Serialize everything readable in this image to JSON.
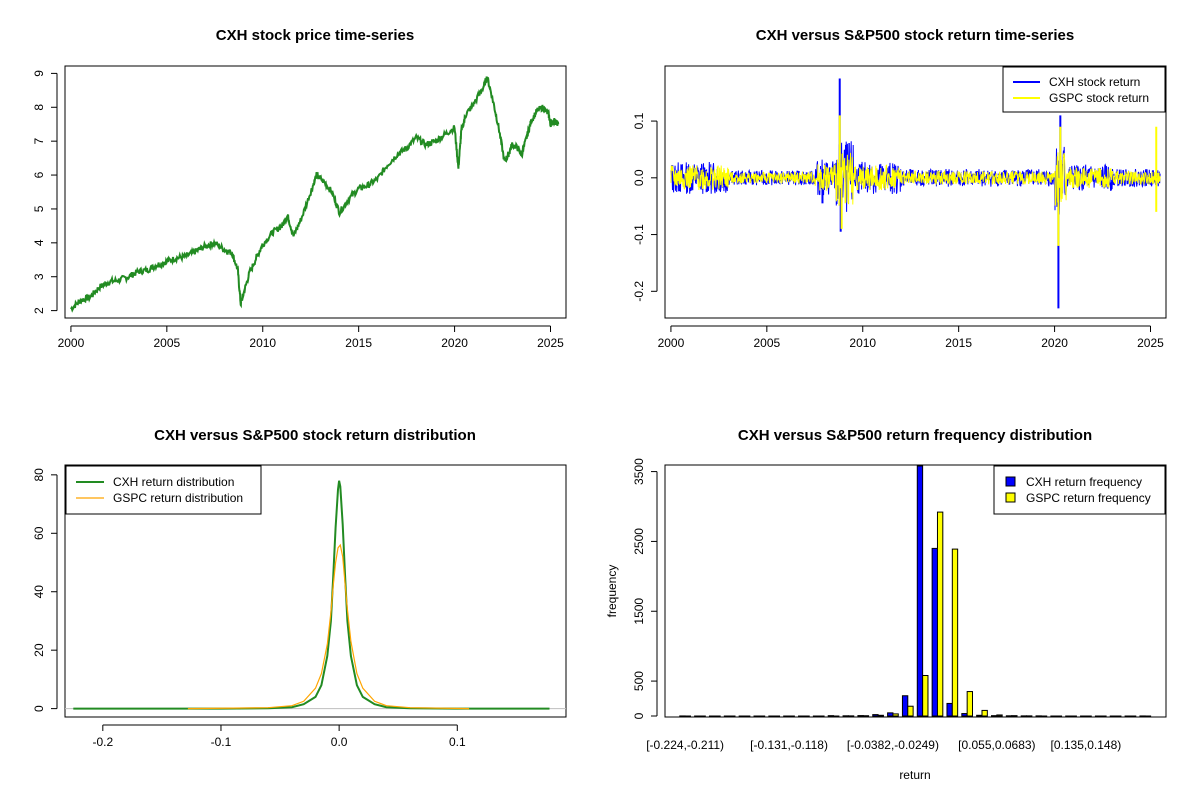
{
  "chart_data": [
    {
      "id": "price",
      "type": "line",
      "title": "CXH stock price time-series",
      "xlabel": "",
      "ylabel": "",
      "xlim": [
        1999.9,
        2025.6
      ],
      "ylim": [
        1.9,
        9.1
      ],
      "xticks": [
        2000,
        2005,
        2010,
        2015,
        2020,
        2025
      ],
      "yticks": [
        2,
        3,
        4,
        5,
        6,
        7,
        8,
        9
      ],
      "grid": false,
      "colors": {
        "series": "#228B22"
      },
      "series": [
        {
          "x": [
            2000.0,
            2000.5,
            2001.0,
            2001.5,
            2002.0,
            2002.5,
            2003.0,
            2003.5,
            2004.0,
            2004.5,
            2005.0,
            2005.5,
            2006.0,
            2006.5,
            2007.0,
            2007.5,
            2008.0,
            2008.4,
            2008.7,
            2008.85,
            2009.0,
            2009.3,
            2009.7,
            2010.0,
            2010.5,
            2011.0,
            2011.3,
            2011.6,
            2012.0,
            2012.5,
            2012.8,
            2013.2,
            2013.6,
            2014.0,
            2014.5,
            2015.0,
            2015.5,
            2016.0,
            2016.5,
            2017.0,
            2017.5,
            2018.0,
            2018.5,
            2019.0,
            2019.5,
            2020.0,
            2020.2,
            2020.35,
            2020.6,
            2021.0,
            2021.5,
            2021.7,
            2022.0,
            2022.3,
            2022.6,
            2022.8,
            2023.0,
            2023.3,
            2023.5,
            2023.8,
            2024.0,
            2024.3,
            2024.6,
            2024.9,
            2025.0,
            2025.2,
            2025.4
          ],
          "y": [
            2.05,
            2.3,
            2.4,
            2.7,
            2.85,
            2.9,
            3.0,
            3.15,
            3.2,
            3.35,
            3.45,
            3.55,
            3.6,
            3.75,
            3.9,
            4.0,
            3.8,
            3.7,
            3.2,
            2.2,
            2.5,
            3.1,
            3.6,
            3.95,
            4.3,
            4.5,
            4.8,
            4.2,
            4.7,
            5.5,
            6.0,
            5.8,
            5.5,
            4.9,
            5.3,
            5.6,
            5.7,
            5.9,
            6.3,
            6.6,
            6.8,
            7.1,
            6.9,
            7.0,
            7.2,
            7.4,
            6.2,
            7.3,
            7.8,
            8.1,
            8.6,
            8.9,
            8.2,
            7.4,
            6.4,
            6.6,
            6.9,
            6.8,
            6.6,
            7.2,
            7.6,
            7.9,
            8.0,
            7.8,
            7.5,
            7.6,
            7.5
          ]
        }
      ]
    },
    {
      "id": "returns",
      "type": "line",
      "title": "CXH versus S&P500 stock return time-series",
      "xlabel": "",
      "ylabel": "",
      "xlim": [
        1999.9,
        2025.6
      ],
      "ylim": [
        -0.24,
        0.19
      ],
      "xticks": [
        2000,
        2005,
        2010,
        2015,
        2020,
        2025
      ],
      "yticks": [
        -0.2,
        -0.1,
        0.0,
        0.1
      ],
      "ytick_labels": [
        "-0.2",
        "-0.1",
        "0.0",
        "0.1"
      ],
      "legend": {
        "placement": "top-right",
        "entries": [
          "CXH stock return",
          "GSPC stock return"
        ]
      },
      "colors": {
        "cxh": "#0000FF",
        "gspc": "#FFFF00"
      },
      "cxh_spikes": [
        {
          "x": 2008.8,
          "y": 0.175
        },
        {
          "x": 2008.85,
          "y": -0.095
        },
        {
          "x": 2020.2,
          "y": -0.23
        },
        {
          "x": 2020.3,
          "y": 0.11
        },
        {
          "x": 2007.9,
          "y": -0.045
        },
        {
          "x": 2009.1,
          "y": 0.05
        }
      ],
      "gspc_spikes": [
        {
          "x": 2008.8,
          "y": 0.11
        },
        {
          "x": 2008.9,
          "y": -0.09
        },
        {
          "x": 2020.2,
          "y": -0.12
        },
        {
          "x": 2020.3,
          "y": 0.09
        },
        {
          "x": 2025.3,
          "y": 0.09
        },
        {
          "x": 2025.3,
          "y": -0.06
        }
      ],
      "volatility_regimes": [
        {
          "from": 2000.0,
          "to": 2003.0,
          "amp": 0.022
        },
        {
          "from": 2003.0,
          "to": 2007.5,
          "amp": 0.01
        },
        {
          "from": 2007.5,
          "to": 2008.6,
          "amp": 0.025
        },
        {
          "from": 2008.6,
          "to": 2009.5,
          "amp": 0.05
        },
        {
          "from": 2009.5,
          "to": 2012.0,
          "amp": 0.022
        },
        {
          "from": 2012.0,
          "to": 2020.0,
          "amp": 0.012
        },
        {
          "from": 2020.0,
          "to": 2020.6,
          "amp": 0.05
        },
        {
          "from": 2020.6,
          "to": 2023.0,
          "amp": 0.018
        },
        {
          "from": 2023.0,
          "to": 2025.5,
          "amp": 0.012
        }
      ]
    },
    {
      "id": "density",
      "type": "line",
      "title": "CXH versus S&P500 stock return distribution",
      "xlabel": "",
      "ylabel": "",
      "xlim": [
        -0.232,
        0.192
      ],
      "ylim": [
        -1.5,
        82
      ],
      "xticks": [
        -0.2,
        -0.1,
        0.0,
        0.1
      ],
      "xtick_labels": [
        "-0.2",
        "-0.1",
        "0.0",
        "0.1"
      ],
      "yticks": [
        0,
        20,
        40,
        60,
        80
      ],
      "legend": {
        "placement": "top-left",
        "entries": [
          "CXH return distribution",
          "GSPC return distribution"
        ]
      },
      "colors": {
        "cxh": "#228B22",
        "gspc": "#FFA500",
        "baseline": "#BEBEBE"
      },
      "series": [
        {
          "x": [
            -0.225,
            -0.1,
            -0.06,
            -0.04,
            -0.03,
            -0.02,
            -0.015,
            -0.01,
            -0.007,
            -0.005,
            -0.003,
            -0.001,
            0.0,
            0.001,
            0.003,
            0.005,
            0.007,
            0.01,
            0.015,
            0.02,
            0.03,
            0.04,
            0.06,
            0.1,
            0.178
          ],
          "y": [
            0,
            0,
            0.1,
            0.5,
            1.5,
            4,
            8,
            18,
            30,
            45,
            62,
            75,
            78,
            76,
            63,
            46,
            30,
            18,
            8,
            4,
            1.5,
            0.5,
            0.1,
            0,
            0
          ]
        },
        {
          "x": [
            -0.128,
            -0.06,
            -0.04,
            -0.03,
            -0.02,
            -0.015,
            -0.01,
            -0.007,
            -0.005,
            -0.003,
            -0.001,
            0.001,
            0.003,
            0.005,
            0.007,
            0.01,
            0.015,
            0.02,
            0.03,
            0.04,
            0.06,
            0.11
          ],
          "y": [
            0,
            0.3,
            1,
            2.5,
            7,
            12,
            22,
            33,
            42,
            50,
            55,
            56,
            52,
            43,
            34,
            23,
            12,
            7,
            2.5,
            1,
            0.3,
            0
          ]
        }
      ]
    },
    {
      "id": "histogram",
      "type": "bar",
      "title": "CXH versus S&P500 return frequency distribution",
      "xlabel": "return",
      "ylabel": "frequency",
      "ylim": [
        0,
        3580
      ],
      "yticks": [
        0,
        500,
        1500,
        2500,
        3500
      ],
      "category_labels_shown": [
        {
          "index": 0,
          "label": "[-0.224,-0.211)"
        },
        {
          "index": 7,
          "label": "[-0.131,-0.118)"
        },
        {
          "index": 14,
          "label": "[-0.0382,-0.0249)"
        },
        {
          "index": 21,
          "label": "[0.055,0.0683)"
        },
        {
          "index": 27,
          "label": "[0.135,0.148)"
        }
      ],
      "legend": {
        "placement": "top-right",
        "entries": [
          "CXH return frequency",
          "GSPC return frequency"
        ]
      },
      "colors": {
        "cxh": "#0000FF",
        "gspc": "#FFFF00"
      },
      "series": [
        {
          "values": [
            1,
            0,
            0,
            0,
            0,
            0,
            0,
            0,
            0,
            0,
            5,
            3,
            6,
            20,
            45,
            290,
            3580,
            2400,
            180,
            35,
            10,
            5,
            3,
            2,
            2,
            0,
            0,
            0,
            0,
            0,
            0,
            1
          ]
        },
        {
          "values": [
            0,
            0,
            0,
            0,
            0,
            0,
            0,
            0,
            0,
            0,
            0,
            2,
            4,
            10,
            30,
            140,
            580,
            2920,
            2390,
            350,
            80,
            15,
            5,
            2,
            0,
            0,
            0,
            0,
            0,
            0,
            0,
            0
          ]
        }
      ]
    }
  ]
}
